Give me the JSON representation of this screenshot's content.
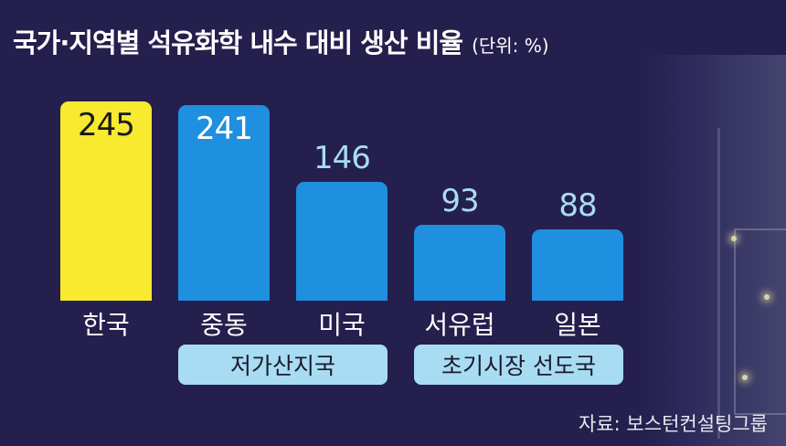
{
  "title": "국가·지역별 석유화학 내수 대비 생산 비율",
  "unit": "(단위: %)",
  "source": "자료: 보스턴컨설팅그룹",
  "colors": {
    "background": "#241f4d",
    "highlight_bar": "#f7ea2f",
    "bar": "#1f8fe0",
    "group_pill": "#a8dcf2"
  },
  "chart_data": {
    "type": "bar",
    "title": "국가·지역별 석유화학 내수 대비 생산 비율",
    "unit": "%",
    "categories": [
      "한국",
      "중동",
      "미국",
      "서유럽",
      "일본"
    ],
    "values": [
      245,
      241,
      146,
      93,
      88
    ],
    "highlight_index": 0,
    "groups": [
      {
        "label": "저가산지국",
        "categories": [
          "중동",
          "미국"
        ]
      },
      {
        "label": "초기시장 선도국",
        "categories": [
          "서유럽",
          "일본"
        ]
      }
    ],
    "ylim": [
      0,
      250
    ],
    "grid": false,
    "legend": "none"
  }
}
